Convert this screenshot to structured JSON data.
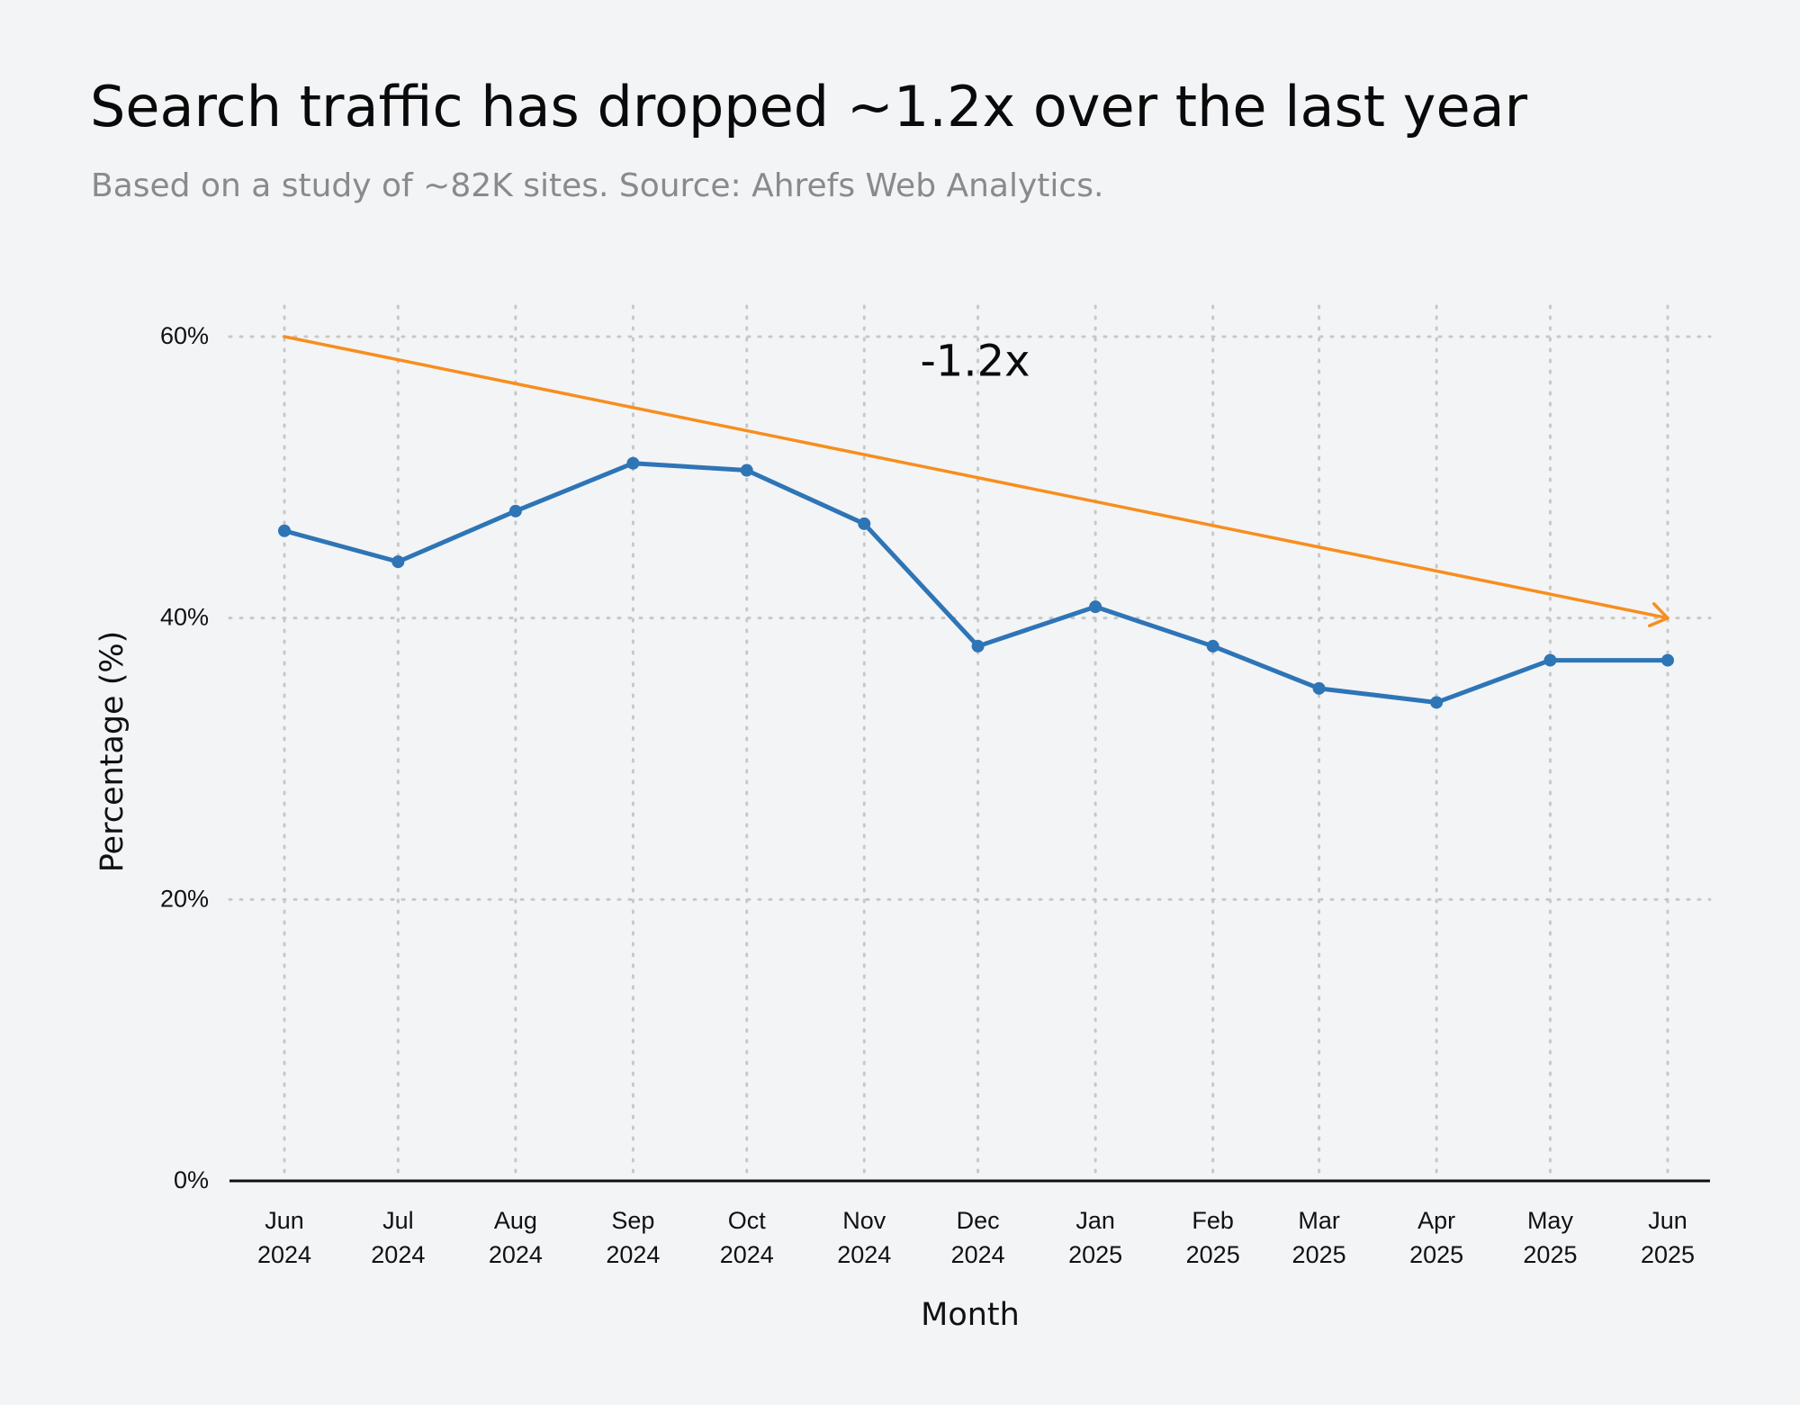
{
  "header": {
    "title": "Search traffic has dropped ~1.2x over the last year",
    "subtitle": "Based on a study of ~82K sites. Source: Ahrefs Web Analytics."
  },
  "chart_data": {
    "type": "line",
    "title": "Search traffic has dropped ~1.2x over the last year",
    "subtitle": "Based on a study of ~82K sites. Source: Ahrefs Web Analytics.",
    "xlabel": "Month",
    "ylabel": "Percentage (%)",
    "ylim": [
      0,
      60
    ],
    "yticks": [
      "0%",
      "20%",
      "40%",
      "60%"
    ],
    "ytick_values": [
      0,
      20,
      40,
      60
    ],
    "grid": "on",
    "categories": [
      [
        "Jun",
        "2024"
      ],
      [
        "Jul",
        "2024"
      ],
      [
        "Aug",
        "2024"
      ],
      [
        "Sep",
        "2024"
      ],
      [
        "Oct",
        "2024"
      ],
      [
        "Nov",
        "2024"
      ],
      [
        "Dec",
        "2024"
      ],
      [
        "Jan",
        "2025"
      ],
      [
        "Feb",
        "2025"
      ],
      [
        "Mar",
        "2025"
      ],
      [
        "Apr",
        "2025"
      ],
      [
        "May",
        "2025"
      ],
      [
        "Jun",
        "2025"
      ]
    ],
    "x_dates": [
      "2024-06-01",
      "2024-07-01",
      "2024-08-01",
      "2024-09-01",
      "2024-10-01",
      "2024-11-01",
      "2024-12-01",
      "2025-01-01",
      "2025-02-01",
      "2025-03-01",
      "2025-04-01",
      "2025-05-01",
      "2025-06-01"
    ],
    "series": [
      {
        "color": "#2e75b6",
        "values": [
          46.2,
          44.0,
          47.6,
          51.0,
          50.5,
          46.7,
          38.0,
          40.8,
          38.0,
          35.0,
          34.0,
          37.0,
          37.0
        ]
      }
    ],
    "trend_arrow": {
      "color": "#f78e1e",
      "from": {
        "x": "2024-06-01",
        "y": 60
      },
      "to": {
        "x": "2025-06-01",
        "y": 40
      },
      "label": "-1.2x"
    },
    "colors": {
      "background": "#f3f4f6",
      "grid": "#c8c8c8",
      "axis": "#111111"
    }
  }
}
